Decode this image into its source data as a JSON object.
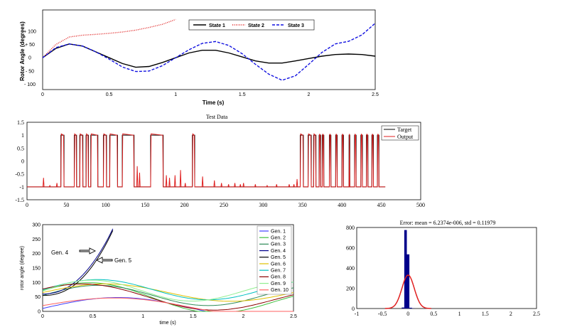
{
  "chart_data": [
    {
      "type": "line",
      "xlabel": "Time (s)",
      "ylabel": "Rotor Angle (degrees)",
      "xlim": [
        0,
        2.5
      ],
      "ylim": [
        -120,
        180
      ],
      "x_ticks": [
        "0",
        "0.5",
        "1",
        "1.5",
        "2",
        "2.5"
      ],
      "y_ticks": [
        "+ 100",
        "+ 50",
        "0",
        "- 50",
        "- 100"
      ],
      "legend_position": "top-right",
      "series": [
        {
          "name": "State 1",
          "color": "#000000",
          "style": "solid",
          "x": [
            0,
            0.1,
            0.2,
            0.3,
            0.4,
            0.5,
            0.6,
            0.7,
            0.8,
            0.9,
            1.0,
            1.1,
            1.2,
            1.3,
            1.4,
            1.5,
            1.6,
            1.7,
            1.8,
            1.9,
            2.0,
            2.1,
            2.2,
            2.3,
            2.4,
            2.5
          ],
          "y": [
            0,
            35,
            52,
            44,
            22,
            0,
            -22,
            -36,
            -33,
            -18,
            0,
            18,
            28,
            28,
            18,
            3,
            -12,
            -20,
            -20,
            -12,
            -3,
            6,
            12,
            14,
            12,
            6
          ]
        },
        {
          "name": "State 2",
          "color": "#e02020",
          "style": "dotted",
          "x": [
            0,
            0.1,
            0.2,
            0.3,
            0.4,
            0.5,
            0.6,
            0.7,
            0.8,
            0.9,
            1.0
          ],
          "y": [
            0,
            50,
            78,
            85,
            88,
            92,
            97,
            104,
            114,
            126,
            144
          ]
        },
        {
          "name": "State 3",
          "color": "#1010e0",
          "style": "dashed",
          "x": [
            0,
            0.1,
            0.2,
            0.3,
            0.4,
            0.5,
            0.6,
            0.7,
            0.8,
            0.9,
            1.0,
            1.1,
            1.2,
            1.3,
            1.4,
            1.5,
            1.6,
            1.7,
            1.8,
            1.9,
            2.0,
            2.1,
            2.2,
            2.3,
            2.4,
            2.5
          ],
          "y": [
            0,
            38,
            52,
            44,
            22,
            -5,
            -35,
            -52,
            -50,
            -30,
            0,
            30,
            54,
            61,
            46,
            15,
            -25,
            -62,
            -85,
            -68,
            -25,
            20,
            52,
            62,
            86,
            130
          ]
        }
      ]
    },
    {
      "type": "line",
      "title": "Test Data",
      "xlim": [
        0,
        500
      ],
      "ylim": [
        -1.5,
        1.5
      ],
      "x_ticks": [
        "0",
        "50",
        "100",
        "150",
        "200",
        "250",
        "300",
        "350",
        "400",
        "450",
        "500"
      ],
      "y_ticks": [
        "1.5",
        "1",
        "0.5",
        "0",
        "-0.5",
        "-1",
        "-1.5"
      ],
      "legend_position": "top-right",
      "series": [
        {
          "name": "Target",
          "color": "#000000",
          "pulses": [
            [
              43,
              47
            ],
            [
              60,
              63
            ],
            [
              67,
              71
            ],
            [
              75,
              78
            ],
            [
              81,
              90
            ],
            [
              97,
              101
            ],
            [
              105,
              115
            ],
            [
              121,
              136
            ],
            [
              157,
              173
            ],
            [
              210,
              213
            ],
            [
              347,
              351
            ],
            [
              357,
              361
            ],
            [
              364,
              367
            ],
            [
              371,
              373
            ],
            [
              375,
              377
            ],
            [
              384,
              386
            ],
            [
              392,
              394
            ],
            [
              400,
              402
            ],
            [
              409,
              410
            ],
            [
              416,
              418
            ],
            [
              424,
              426
            ],
            [
              431,
              433
            ],
            [
              438,
              440
            ],
            [
              445,
              447
            ]
          ]
        },
        {
          "name": "Output",
          "color": "#e02020",
          "spikes": [
            [
              21,
              -0.65
            ],
            [
              29,
              -0.95
            ],
            [
              38,
              -0.85
            ],
            [
              140,
              -0.2
            ],
            [
              143,
              -0.45
            ],
            [
              177,
              -0.55
            ],
            [
              181,
              -0.65
            ],
            [
              188,
              -0.55
            ],
            [
              195,
              -0.35
            ],
            [
              201,
              -0.85
            ],
            [
              223,
              -0.6
            ],
            [
              238,
              -0.75
            ],
            [
              247,
              -0.85
            ],
            [
              256,
              -0.9
            ],
            [
              264,
              -0.85
            ],
            [
              271,
              -0.9
            ],
            [
              275,
              -0.85
            ],
            [
              290,
              -0.9
            ],
            [
              305,
              -0.95
            ],
            [
              317,
              -0.9
            ],
            [
              333,
              -0.9
            ],
            [
              339,
              -0.9
            ],
            [
              343,
              -0.7
            ]
          ]
        }
      ]
    },
    {
      "type": "line",
      "xlabel": "time (s)",
      "ylabel": "rotor angle (degree)",
      "xlim": [
        0,
        2.5
      ],
      "ylim": [
        0,
        300
      ],
      "x_ticks": [
        "0",
        "0.5",
        "1",
        "1.5",
        "2",
        "2.5"
      ],
      "y_ticks": [
        "300",
        "250",
        "200",
        "150",
        "100",
        "50",
        "0"
      ],
      "legend_position": "top-right",
      "annotations": [
        "Gen. 4",
        "Gen. 5"
      ],
      "series": [
        {
          "name": "Gen. 1",
          "color": "#4040ff"
        },
        {
          "name": "Gen. 2",
          "color": "#40c040"
        },
        {
          "name": "Gen. 3",
          "color": "#2e8b57"
        },
        {
          "name": "Gen. 4",
          "color": "#00008b"
        },
        {
          "name": "Gen. 5",
          "color": "#000000"
        },
        {
          "name": "Gen. 6",
          "color": "#e0c000"
        },
        {
          "name": "Gen. 7",
          "color": "#00c0c0"
        },
        {
          "name": "Gen. 8",
          "color": "#8b0000"
        },
        {
          "name": "Gen. 9",
          "color": "#90ee90"
        },
        {
          "name": "Gen. 10",
          "color": "#ff6060"
        }
      ]
    },
    {
      "type": "bar",
      "title": "Error: mean = 6.2374e-006, std = 0.11979",
      "xlim": [
        -1,
        2.5
      ],
      "ylim": [
        0,
        800
      ],
      "x_ticks": [
        "-1",
        "-0.5",
        "0",
        "0.5",
        "1",
        "1.5",
        "2",
        "2.5"
      ],
      "y_ticks": [
        "800",
        "600",
        "400",
        "200",
        "0"
      ],
      "bins": [
        -0.1,
        -0.05,
        0,
        0.05,
        0.1
      ],
      "values": [
        10,
        775,
        535,
        8,
        2
      ],
      "fit_peak": 330,
      "bar_color": "#00008b",
      "fit_color": "#e02020"
    }
  ]
}
